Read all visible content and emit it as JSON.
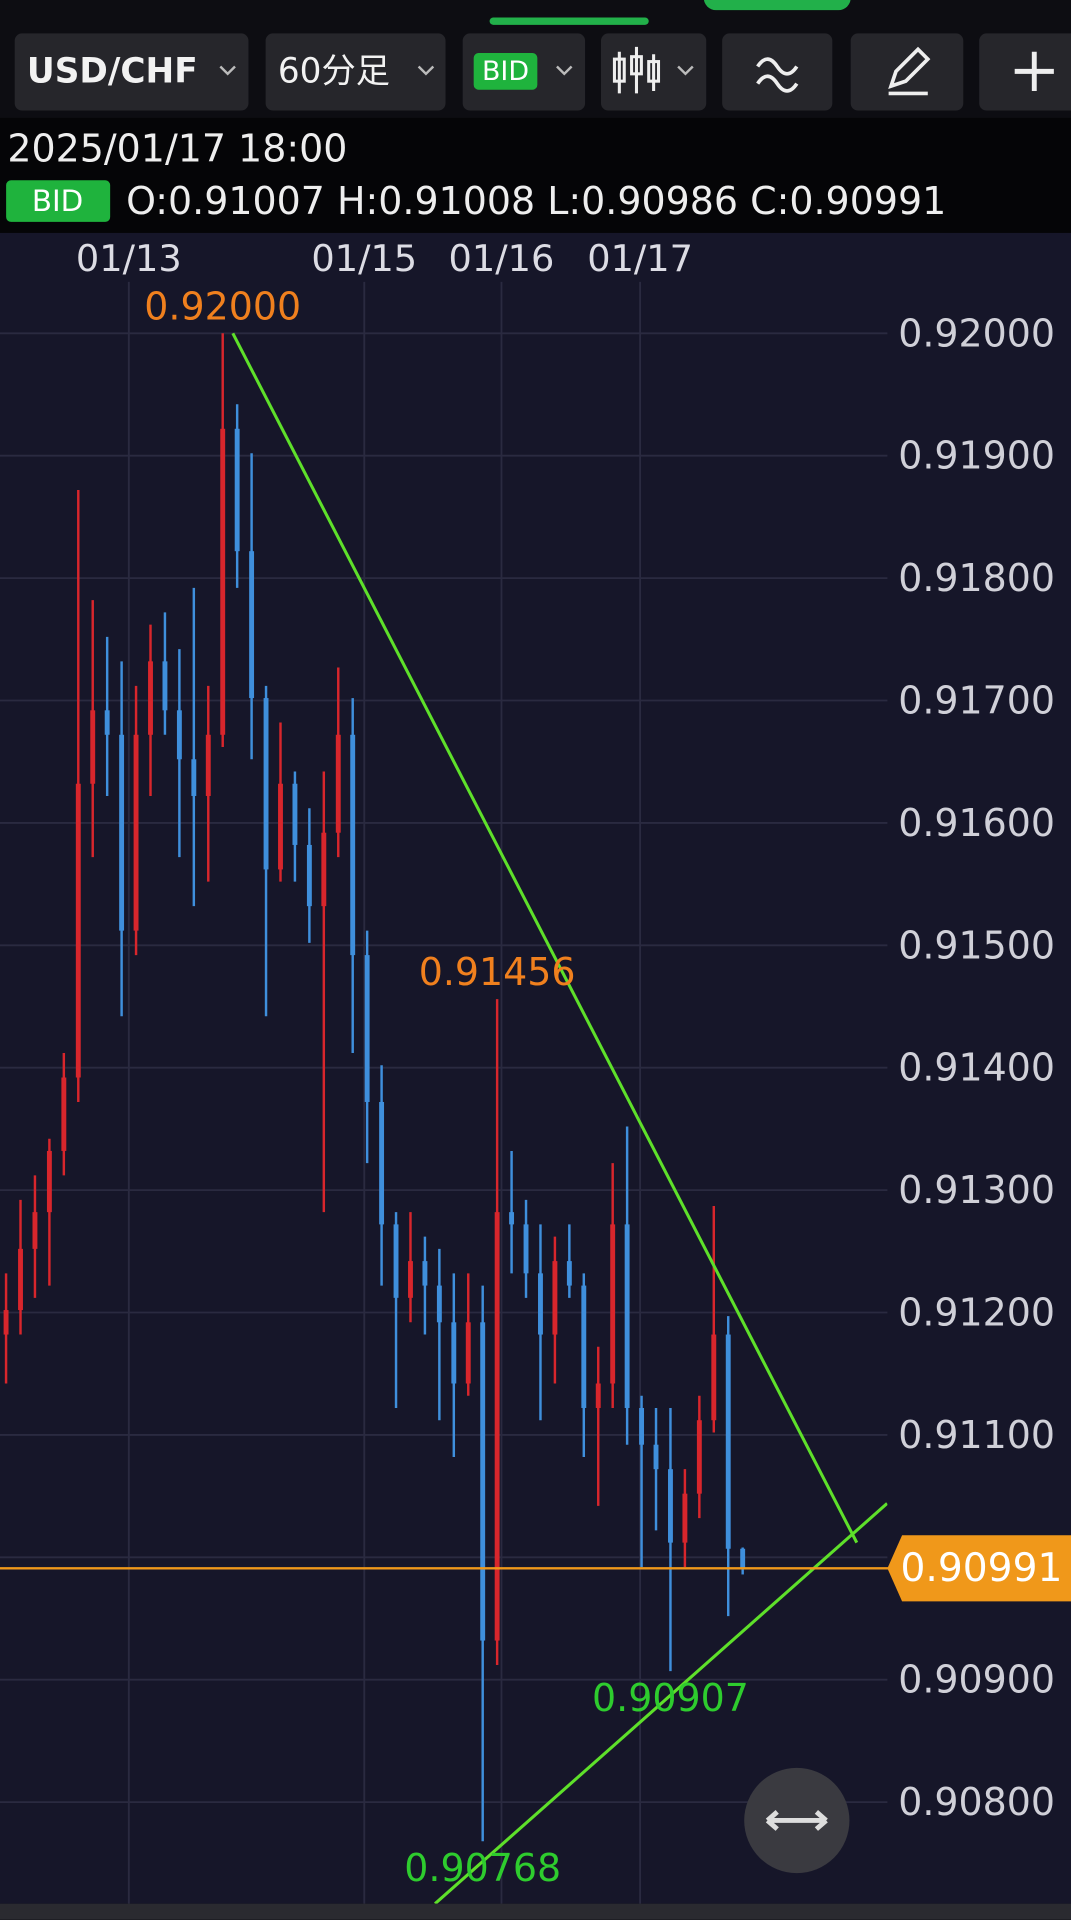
{
  "toolbar": {
    "symbol": "USD/CHF",
    "timeframe": "60分足",
    "price_type": "BID"
  },
  "info": {
    "datetime": "2025/01/17 18:00",
    "badge": "BID",
    "ohlc_text": "O:0.91007 H:0.91008 L:0.90986 C:0.90991"
  },
  "chart_data": {
    "type": "candlestick",
    "categories": [
      null,
      null,
      null,
      null,
      null,
      null,
      null,
      null,
      null,
      null,
      null,
      null,
      null,
      null,
      null,
      null,
      null,
      null,
      null,
      null,
      null,
      null,
      null,
      null,
      null,
      null,
      null,
      null,
      null,
      null,
      null,
      null,
      null,
      null,
      null,
      null,
      null,
      null,
      null,
      null,
      null,
      null,
      null,
      null,
      null,
      null,
      null,
      null,
      null,
      null,
      null,
      null
    ],
    "open": [
      0.91182,
      0.91202,
      0.91252,
      0.91282,
      0.91332,
      0.91392,
      0.91632,
      0.91692,
      0.91672,
      0.91512,
      0.91672,
      0.91732,
      0.91692,
      0.91652,
      0.91622,
      0.91672,
      0.91922,
      0.91822,
      0.91702,
      0.91562,
      0.91632,
      0.91582,
      0.91532,
      0.91592,
      0.91672,
      0.91492,
      0.91372,
      0.91272,
      0.91212,
      0.91242,
      0.91222,
      0.91192,
      0.91142,
      0.91192,
      0.90932,
      0.91282,
      0.91272,
      0.91232,
      0.91182,
      0.91242,
      0.91222,
      0.91122,
      0.91142,
      0.91272,
      0.91122,
      0.91092,
      0.91072,
      0.91012,
      0.91052,
      0.91112,
      0.91182,
      0.91007
    ],
    "high": [
      0.91232,
      0.91292,
      0.91312,
      0.91342,
      0.91412,
      0.91872,
      0.91782,
      0.91752,
      0.91732,
      0.91712,
      0.91762,
      0.91772,
      0.91742,
      0.91792,
      0.91712,
      0.92,
      0.91942,
      0.91902,
      0.91712,
      0.91682,
      0.91642,
      0.91612,
      0.91642,
      0.91727,
      0.91702,
      0.91512,
      0.91402,
      0.91282,
      0.91282,
      0.91262,
      0.91252,
      0.91232,
      0.91232,
      0.91222,
      0.91456,
      0.91332,
      0.91292,
      0.91272,
      0.91262,
      0.91272,
      0.91232,
      0.91172,
      0.91322,
      0.91352,
      0.91132,
      0.91122,
      0.91122,
      0.91072,
      0.91132,
      0.91287,
      0.91197,
      0.91008
    ],
    "low": [
      0.91142,
      0.91182,
      0.91212,
      0.91222,
      0.91312,
      0.91372,
      0.91572,
      0.91622,
      0.91442,
      0.91492,
      0.91622,
      0.91672,
      0.91572,
      0.91532,
      0.91552,
      0.91662,
      0.91792,
      0.91652,
      0.91442,
      0.91552,
      0.91552,
      0.91502,
      0.91282,
      0.91572,
      0.91412,
      0.91322,
      0.91222,
      0.91122,
      0.91192,
      0.91182,
      0.91112,
      0.91082,
      0.91132,
      0.90768,
      0.90912,
      0.91232,
      0.91212,
      0.91112,
      0.91142,
      0.91212,
      0.91082,
      0.91042,
      0.91122,
      0.91092,
      0.90992,
      0.91022,
      0.90907,
      0.90992,
      0.91032,
      0.91102,
      0.90952,
      0.90986
    ],
    "close": [
      0.91202,
      0.91252,
      0.91282,
      0.91332,
      0.91392,
      0.91632,
      0.91692,
      0.91672,
      0.91512,
      0.91672,
      0.91732,
      0.91692,
      0.91652,
      0.91622,
      0.91672,
      0.91922,
      0.91822,
      0.91702,
      0.91562,
      0.91632,
      0.91582,
      0.91532,
      0.91592,
      0.91672,
      0.91492,
      0.91372,
      0.91272,
      0.91212,
      0.91242,
      0.91222,
      0.91192,
      0.91142,
      0.91192,
      0.90932,
      0.91282,
      0.91272,
      0.91232,
      0.91182,
      0.91242,
      0.91222,
      0.91122,
      0.91142,
      0.91272,
      0.91122,
      0.91092,
      0.91072,
      0.91012,
      0.91052,
      0.91112,
      0.91182,
      0.91007,
      0.90991
    ],
    "up_color": "#d8262c",
    "down_color": "#3f8fdc",
    "xlim": [
      -0.42,
      61.02
    ],
    "xticks": [
      {
        "value": 8.5,
        "label": "01/13"
      },
      {
        "value": 24.8,
        "label": "01/15"
      },
      {
        "value": 34.3,
        "label": "01/16"
      },
      {
        "value": 43.9,
        "label": "01/17"
      }
    ],
    "ylim": [
      0.90717,
      0.92042
    ],
    "yticks": [
      {
        "value": 0.908,
        "label": "0.90800"
      },
      {
        "value": 0.909,
        "label": "0.90900"
      },
      {
        "value": 0.91,
        "label": "0.91000"
      },
      {
        "value": 0.911,
        "label": "0.91100"
      },
      {
        "value": 0.912,
        "label": "0.91200"
      },
      {
        "value": 0.913,
        "label": "0.91300"
      },
      {
        "value": 0.914,
        "label": "0.91400"
      },
      {
        "value": 0.915,
        "label": "0.91500"
      },
      {
        "value": 0.916,
        "label": "0.91600"
      },
      {
        "value": 0.917,
        "label": "0.91700"
      },
      {
        "value": 0.918,
        "label": "0.91800"
      },
      {
        "value": 0.919,
        "label": "0.91900"
      },
      {
        "value": 0.92,
        "label": "0.92000"
      }
    ],
    "grid": true,
    "last_price": {
      "value": 0.90991,
      "label": "0.90991",
      "color": "#f0981a"
    },
    "annotations": [
      {
        "value": 0.92,
        "label": "0.92000",
        "color": "#f0801e"
      },
      {
        "value": 0.91456,
        "label": "0.91456",
        "color": "#f0801e"
      },
      {
        "value": 0.90907,
        "label": "0.90907",
        "color": "#2ecc2e"
      },
      {
        "value": 0.90768,
        "label": "0.90768",
        "color": "#2ecc2e"
      }
    ],
    "trend_lines": [
      {
        "x": [
          15.7,
          58.9
        ],
        "y": [
          0.92,
          0.91012
        ]
      },
      {
        "x": [
          29.7,
          61.0
        ],
        "y": [
          0.90717,
          0.91044
        ]
      }
    ],
    "trend_color": "#5ee02a"
  }
}
